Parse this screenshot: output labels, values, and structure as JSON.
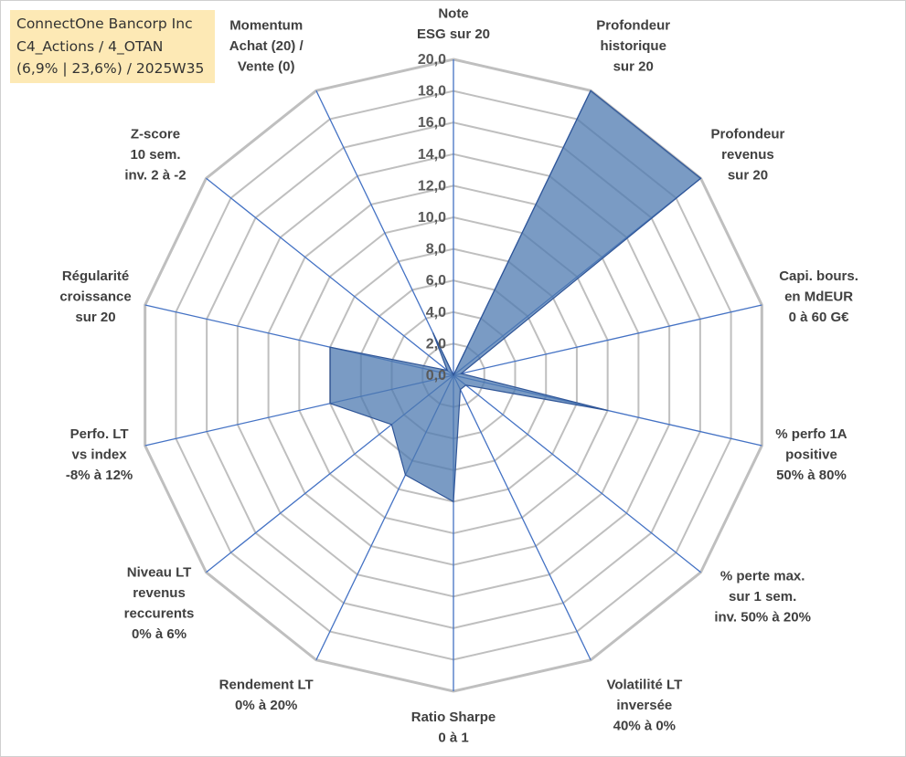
{
  "title_lines": [
    "ConnectOne Bancorp Inc",
    "C4_Actions / 4_OTAN",
    "(6,9% | 23,6%) / 2025W35"
  ],
  "chart_data": {
    "type": "radar",
    "rmin": 0,
    "rmax": 20,
    "grid": true,
    "radial_ticks": [
      "0,0",
      "2,0",
      "4,0",
      "6,0",
      "8,0",
      "10,0",
      "12,0",
      "14,0",
      "16,0",
      "18,0",
      "20,0"
    ],
    "axes": [
      {
        "label": [
          "Note",
          "ESG sur 20"
        ],
        "value": 0
      },
      {
        "label": [
          "Profondeur",
          "historique",
          "sur 20"
        ],
        "value": 20
      },
      {
        "label": [
          "Profondeur",
          "revenus",
          "sur 20"
        ],
        "value": 20
      },
      {
        "label": [
          "Capi. bours.",
          "en MdEUR",
          "0 à 60 G€"
        ],
        "value": 0.5
      },
      {
        "label": [
          "% perfo 1A",
          "positive",
          "50% à 80%"
        ],
        "value": 10
      },
      {
        "label": [
          "% perte max.",
          "sur 1 sem.",
          "inv. 50% à 20%"
        ],
        "value": 1
      },
      {
        "label": [
          "Volatilité LT",
          "inversée",
          "40% à 0%"
        ],
        "value": 1
      },
      {
        "label": [
          "Ratio Sharpe",
          "0 à 1"
        ],
        "value": 8
      },
      {
        "label": [
          "Rendement LT",
          "0% à 20%"
        ],
        "value": 7
      },
      {
        "label": [
          "Niveau LT",
          "revenus",
          "reccurents",
          "0% à 6%"
        ],
        "value": 5
      },
      {
        "label": [
          "Perfo. LT",
          "vs index",
          "-8% à 12%"
        ],
        "value": 8
      },
      {
        "label": [
          "Régularité",
          "croissance",
          "sur 20"
        ],
        "value": 8
      },
      {
        "label": [
          "Z-score",
          "10 sem.",
          "inv. 2 à -2"
        ],
        "value": 0.5
      },
      {
        "label": [
          "Momentum",
          "Achat (20) /",
          "Vente (0)"
        ],
        "value": 3
      }
    ],
    "colors": {
      "grid": "#bfbfbf",
      "spoke": "#4472c4",
      "fill": "#4e79b0",
      "stroke": "#2f5597"
    }
  }
}
